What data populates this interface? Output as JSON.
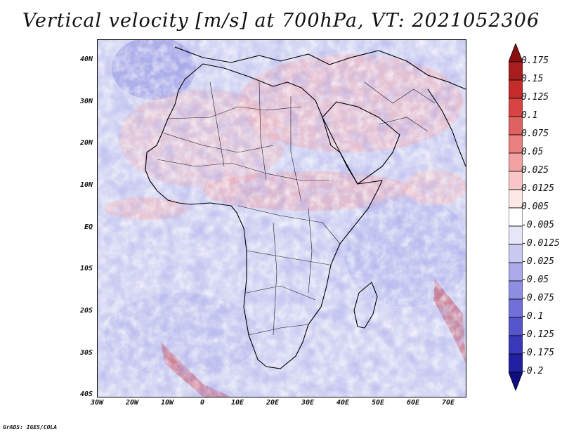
{
  "title": "Vertical velocity [m/s] at 700hPa, VT: 2021052306",
  "credit": "GrADS: IGES/COLA",
  "lat_ticks": [
    "40N",
    "30N",
    "20N",
    "10N",
    "EQ",
    "10S",
    "20S",
    "30S",
    "40S"
  ],
  "lon_ticks": [
    "30W",
    "20W",
    "10W",
    "0",
    "10E",
    "20E",
    "30E",
    "40E",
    "50E",
    "60E",
    "70E"
  ],
  "colorbar": {
    "labels": [
      "0.175",
      "0.15",
      "0.125",
      "0.1",
      "0.075",
      "0.05",
      "0.025",
      "0.0125",
      "0.005",
      "-0.005",
      "-0.0125",
      "-0.025",
      "-0.05",
      "-0.075",
      "-0.1",
      "-0.125",
      "-0.175",
      "-0.2"
    ],
    "colors": [
      "#8b0f0f",
      "#a81e1e",
      "#c42b2b",
      "#d64444",
      "#e06161",
      "#ea8080",
      "#f2a2a2",
      "#f8c6c6",
      "#fde8e8",
      "#ffffff",
      "#e6e6f8",
      "#c8c8f0",
      "#ababea",
      "#8e8ee2",
      "#7070d8",
      "#5555cc",
      "#3838b8",
      "#2020a0",
      "#0d0d80"
    ]
  }
}
